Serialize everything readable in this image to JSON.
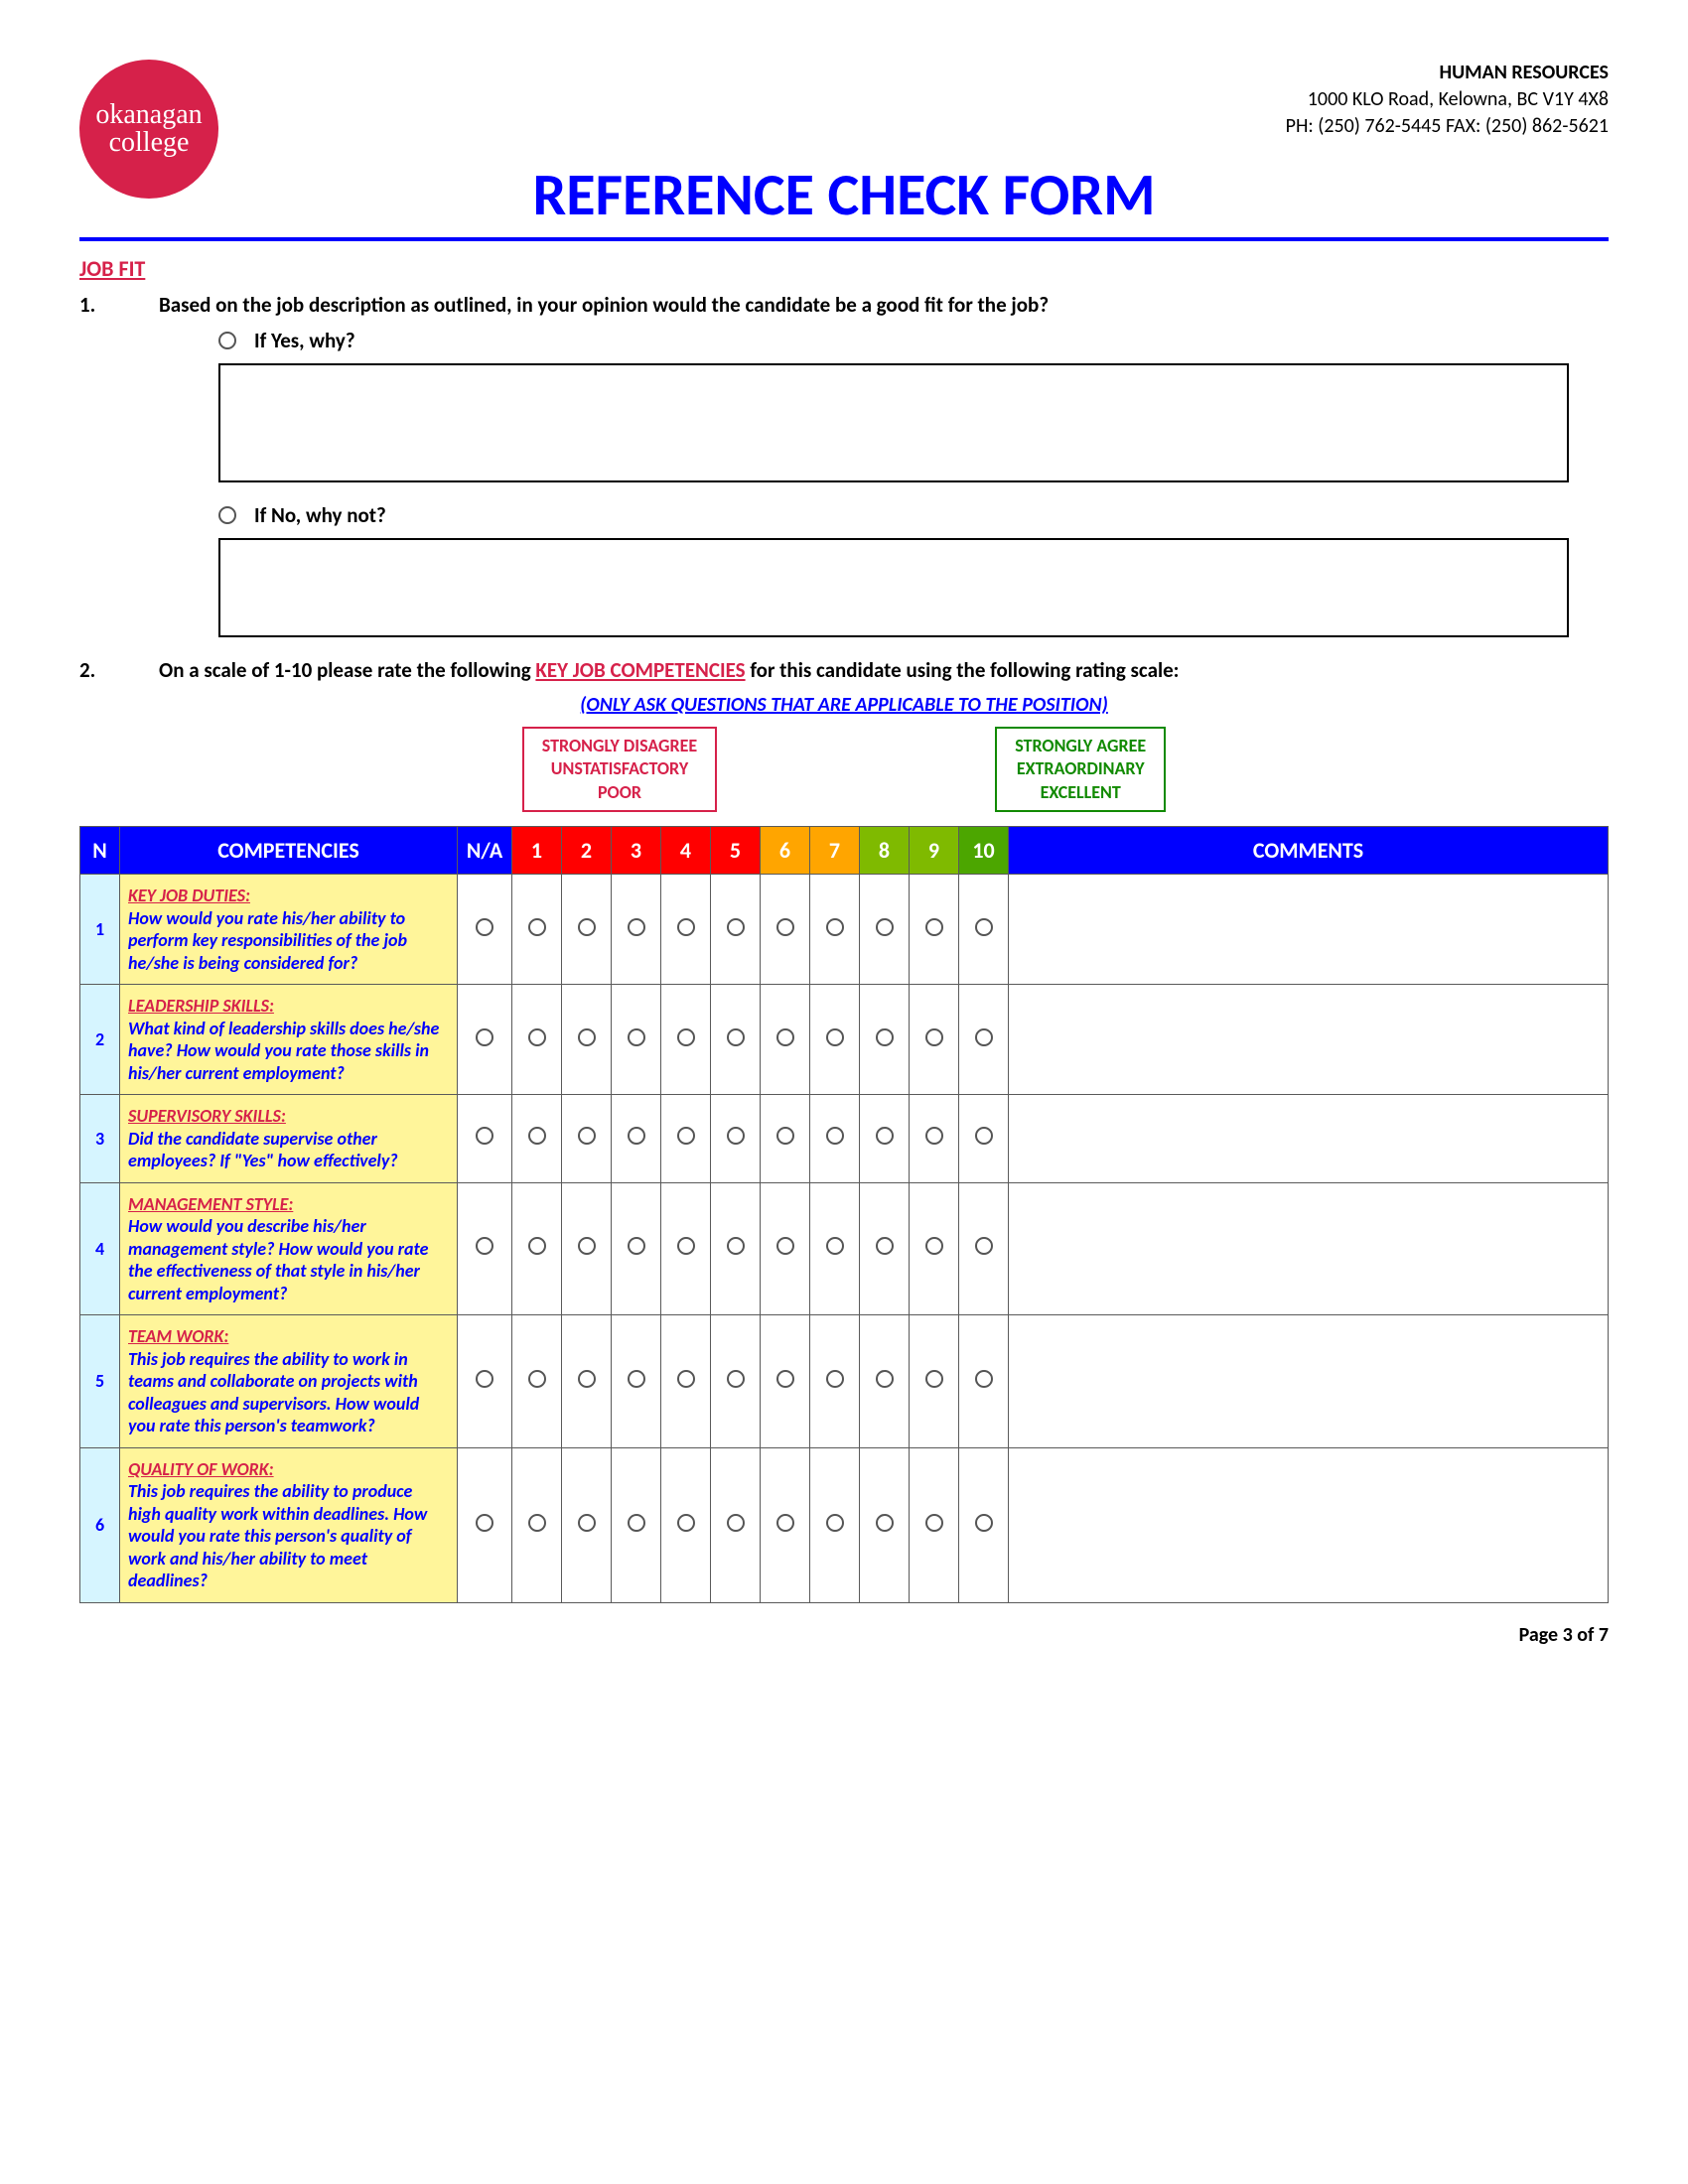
{
  "header": {
    "logo_line1": "okanagan",
    "logo_line2": "college",
    "hr_title": "HUMAN RESOURCES",
    "address": "1000 KLO Road, Kelowna, BC V1Y 4X8",
    "phone_fax": "PH: (250) 762-5445 FAX: (250) 862-5621",
    "page_title": "REFERENCE CHECK FORM"
  },
  "section_title": "JOB FIT",
  "q1": {
    "num": "1.",
    "text": "Based on the job description as outlined, in your opinion would the candidate be a good fit for the job?",
    "yes_label": "If Yes, why?",
    "no_label": "If No, why not?"
  },
  "q2": {
    "num": "2.",
    "prefix": "On a scale of 1-10 please rate the following ",
    "key_comp": "KEY JOB COMPETENCIES",
    "suffix": " for this candidate using the following rating scale:",
    "sub": "(ONLY ASK QUESTIONS THAT ARE APPLICABLE TO THE POSITION)"
  },
  "legend": {
    "left1": "STRONGLY DISAGREE",
    "left2": "UNSTATISFACTORY",
    "left3": "POOR",
    "right1": "STRONGLY AGREE",
    "right2": "EXTRAORDINARY",
    "right3": "EXCELLENT"
  },
  "table": {
    "head": {
      "n": "N",
      "comp": "COMPETENCIES",
      "na": "N/A",
      "comments": "COMMENTS"
    },
    "scale_labels": [
      "1",
      "2",
      "3",
      "4",
      "5",
      "6",
      "7",
      "8",
      "9",
      "10"
    ],
    "scale_colors": [
      "#ff0000",
      "#ff0000",
      "#ff0000",
      "#ff0000",
      "#ff0000",
      "#ffa500",
      "#ffa500",
      "#7fba00",
      "#7fba00",
      "#4ca600"
    ],
    "rows": [
      {
        "n": "1",
        "title": "KEY JOB DUTIES:",
        "body": "How would you rate his/her ability to perform key responsibilities of the job he/she is being considered for?"
      },
      {
        "n": "2",
        "title": "LEADERSHIP SKILLS:",
        "body": "What kind of leadership skills does he/she have? How would you rate those skills in his/her current employment?"
      },
      {
        "n": "3",
        "title": "SUPERVISORY SKILLS:",
        "body": "Did the candidate supervise other employees? If \"Yes\" how effectively?"
      },
      {
        "n": "4",
        "title": "MANAGEMENT STYLE:",
        "body": "How would you describe his/her management style? How would you rate the effectiveness of that style in his/her current employment?"
      },
      {
        "n": "5",
        "title": "TEAM WORK:",
        "body": "This job requires the ability to work in teams and collaborate on projects with colleagues and supervisors. How would you rate this person's teamwork?"
      },
      {
        "n": "6",
        "title": "QUALITY OF WORK:",
        "body": "This job requires the ability to produce high quality work within deadlines. How would you rate this person's quality of work and his/her ability to meet deadlines?"
      }
    ]
  },
  "footer": "Page 3 of 7"
}
